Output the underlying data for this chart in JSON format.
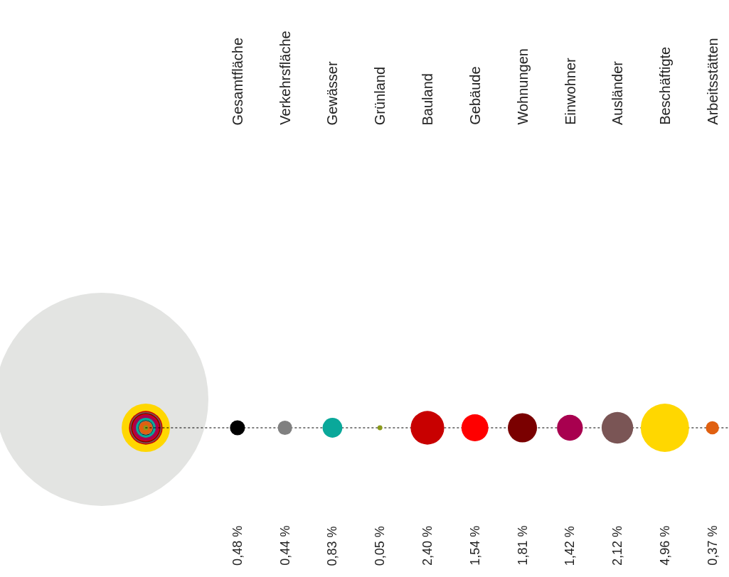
{
  "chart_data": {
    "type": "other",
    "categories": [
      "Gesamtfläche",
      "Verkehrsfläche",
      "Gewässer",
      "Grünland",
      "Bauland",
      "Gebäude",
      "Wohnungen",
      "Einwohner",
      "Ausländer",
      "Beschäftigte",
      "Arbeitsstätten"
    ],
    "values": [
      0.48,
      0.44,
      0.83,
      0.05,
      2.4,
      1.54,
      1.81,
      1.42,
      2.12,
      4.96,
      0.37
    ],
    "value_labels": [
      "0,48 %",
      "0,44 %",
      "0,83 %",
      "0,05 %",
      "2,40 %",
      "1,54 %",
      "1,81 %",
      "1,42 %",
      "2,12 %",
      "4,96 %",
      "0,37 %"
    ],
    "colors": [
      "#000000",
      "#808080",
      "#0aa89a",
      "#8a9a1a",
      "#c80000",
      "#ff0000",
      "#7a0000",
      "#a8004f",
      "#7a5555",
      "#ffd700",
      "#e06010"
    ]
  }
}
